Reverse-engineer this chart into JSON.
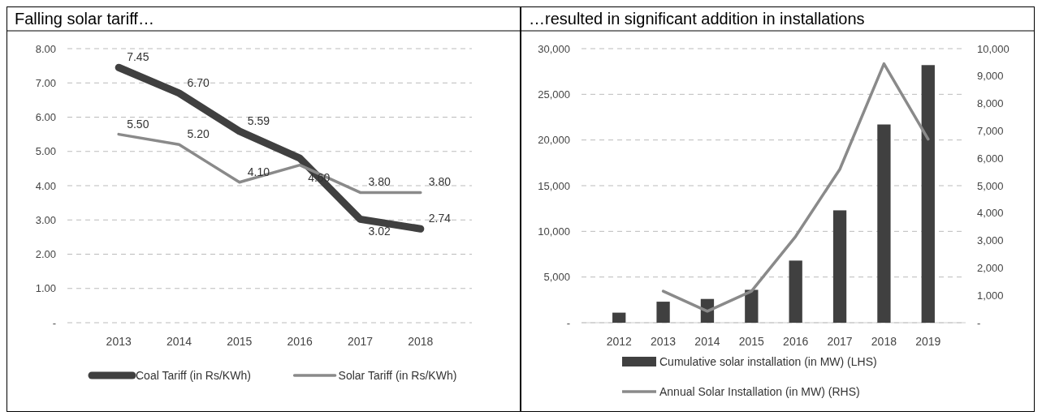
{
  "chart_data": [
    {
      "type": "line",
      "title": "Falling solar tariff…",
      "categories": [
        "2013",
        "2014",
        "2015",
        "2016",
        "2017",
        "2018"
      ],
      "series": [
        {
          "name": "Coal Tariff (in Rs/KWh)",
          "color": "#404040",
          "values": [
            7.45,
            6.7,
            5.59,
            4.8,
            3.02,
            2.74
          ],
          "value_labels": [
            "7.45",
            "6.70",
            "5.59",
            null,
            "3.02",
            "2.74"
          ]
        },
        {
          "name": "Solar Tariff (in Rs/KWh)",
          "color": "#8a8a8a",
          "values": [
            5.5,
            5.2,
            4.1,
            4.6,
            3.8,
            3.8
          ],
          "value_labels": [
            "5.50",
            "5.20",
            "4.10",
            "4.60",
            "3.80",
            "3.80"
          ]
        }
      ],
      "ylim": [
        0,
        8
      ],
      "yticks": [
        {
          "value": 0,
          "label": "-"
        },
        {
          "value": 1,
          "label": "1.00"
        },
        {
          "value": 2,
          "label": "2.00"
        },
        {
          "value": 3,
          "label": "3.00"
        },
        {
          "value": 4,
          "label": "4.00"
        },
        {
          "value": 5,
          "label": "5.00"
        },
        {
          "value": 6,
          "label": "6.00"
        },
        {
          "value": 7,
          "label": "7.00"
        },
        {
          "value": 8,
          "label": "8.00"
        }
      ],
      "grid": "y",
      "legend": "bottom"
    },
    {
      "type": "bar",
      "title": "…resulted in significant addition in installations",
      "categories": [
        "2012",
        "2013",
        "2014",
        "2015",
        "2016",
        "2017",
        "2018",
        "2019"
      ],
      "series": [
        {
          "name": "Cumulative solar installation (in MW) (LHS)",
          "color": "#404040",
          "values": [
            1100,
            2300,
            2600,
            3600,
            6800,
            12300,
            21700,
            28200
          ]
        },
        {
          "name": "Annual Solar Installation (in MW) (RHS)",
          "type": "line",
          "axis": "y2",
          "color": "#8a8a8a",
          "values": [
            null,
            1150,
            420,
            1150,
            3150,
            5600,
            9450,
            6700
          ]
        }
      ],
      "ylim": [
        0,
        30000
      ],
      "yticks": [
        {
          "value": 0,
          "label": "-"
        },
        {
          "value": 5000,
          "label": "5,000"
        },
        {
          "value": 10000,
          "label": "10,000"
        },
        {
          "value": 15000,
          "label": "15,000"
        },
        {
          "value": 20000,
          "label": "20,000"
        },
        {
          "value": 25000,
          "label": "25,000"
        },
        {
          "value": 30000,
          "label": "30,000"
        }
      ],
      "y2lim": [
        0,
        10000
      ],
      "y2ticks": [
        {
          "value": 0,
          "label": "-"
        },
        {
          "value": 1000,
          "label": "1,000"
        },
        {
          "value": 2000,
          "label": "2,000"
        },
        {
          "value": 3000,
          "label": "3,000"
        },
        {
          "value": 4000,
          "label": "4,000"
        },
        {
          "value": 5000,
          "label": "5,000"
        },
        {
          "value": 6000,
          "label": "6,000"
        },
        {
          "value": 7000,
          "label": "7,000"
        },
        {
          "value": 8000,
          "label": "8,000"
        },
        {
          "value": 9000,
          "label": "9,000"
        },
        {
          "value": 10000,
          "label": "10,000"
        }
      ],
      "grid": "y",
      "legend": "bottom"
    }
  ]
}
